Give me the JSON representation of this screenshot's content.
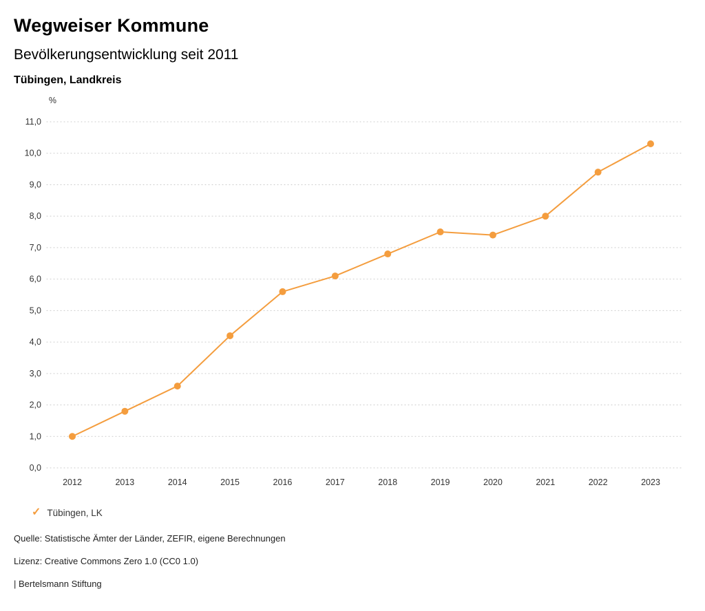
{
  "header": {
    "title": "Wegweiser Kommune",
    "subtitle": "Bevölkerungsentwicklung seit 2011",
    "region": "Tübingen, Landkreis"
  },
  "chart_data": {
    "type": "line",
    "title": "Bevölkerungsentwicklung seit 2011",
    "region": "Tübingen, Landkreis",
    "unit_label": "%",
    "categories": [
      "2012",
      "2013",
      "2014",
      "2015",
      "2016",
      "2017",
      "2018",
      "2019",
      "2020",
      "2021",
      "2022",
      "2023"
    ],
    "series": [
      {
        "name": "Tübingen, LK",
        "color": "#F49D3E",
        "values": [
          1.0,
          1.8,
          2.6,
          4.2,
          5.6,
          6.1,
          6.8,
          7.5,
          7.4,
          8.0,
          9.4,
          10.3
        ]
      }
    ],
    "ylim": [
      0.0,
      11.0
    ],
    "yticks": [
      {
        "value": 11.0,
        "label": "11,0"
      },
      {
        "value": 10.0,
        "label": "10,0"
      },
      {
        "value": 9.0,
        "label": "9,0"
      },
      {
        "value": 8.0,
        "label": "8,0"
      },
      {
        "value": 7.0,
        "label": "7,0"
      },
      {
        "value": 6.0,
        "label": "6,0"
      },
      {
        "value": 5.0,
        "label": "5,0"
      },
      {
        "value": 4.0,
        "label": "4,0"
      },
      {
        "value": 3.0,
        "label": "3,0"
      },
      {
        "value": 2.0,
        "label": "2,0"
      },
      {
        "value": 1.0,
        "label": "1,0"
      },
      {
        "value": 0.0,
        "label": "0,0"
      }
    ],
    "grid": "horizontal-dotted",
    "legend_position": "bottom-left",
    "colors": {
      "accent": "#F49D3E",
      "grid": "#c9c9c9",
      "axis_text": "#333333"
    }
  },
  "legend": {
    "items": [
      {
        "label": "Tübingen, LK",
        "color": "#F49D3E",
        "icon": "check"
      }
    ]
  },
  "footer": {
    "source": "Quelle: Statistische Ämter der Länder, ZEFIR, eigene Berechnungen",
    "license": "Lizenz: Creative Commons Zero 1.0 (CC0 1.0)",
    "attribution": "| Bertelsmann Stiftung"
  }
}
